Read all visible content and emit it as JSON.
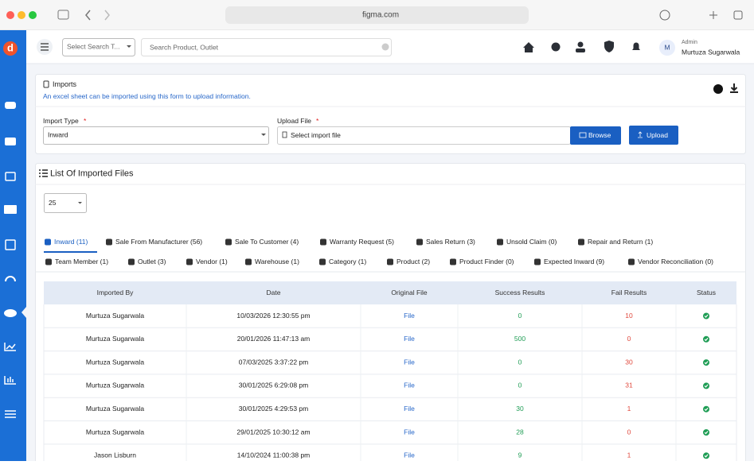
{
  "browser": {
    "url": "figma.com"
  },
  "sidebar": {
    "logo": "d"
  },
  "topbar": {
    "search_type_placeholder": "Select Search T...",
    "search_placeholder": "Search Product, Outlet",
    "avatar": "M",
    "user_role": "Admin",
    "user_name": "Murtuza Sugarwala"
  },
  "imports": {
    "title": "Imports",
    "description": "An excel sheet can be imported using this form to upload information.",
    "import_type_label": "Import Type",
    "import_type_value": "Inward",
    "upload_label": "Upload File",
    "required_mark": "*",
    "upload_placeholder": "Select import file",
    "browse_button": "Browse",
    "upload_button": "Upload"
  },
  "list": {
    "title": "List Of Imported Files",
    "page_size": 25,
    "tabs_row_1": [
      "Inward (11)",
      "Sale From Manufacturer (56)",
      "Sale To Customer (4)",
      "Warranty Request (5)",
      "Sales Return (3)",
      "Unsold Claim (0)",
      "Repair and Return (1)"
    ],
    "tabs_row_2": [
      "Team Member (1)",
      "Outlet (3)",
      "Vendor (1)",
      "Warehouse (1)",
      "Category (1)",
      "Product (2)",
      "Product Finder (0)",
      "Expected Inward (9)",
      "Vendor Reconciliation (0)"
    ],
    "table": {
      "headers": [
        "Imported By",
        "Date",
        "Original File",
        "Success Results",
        "Fail Results",
        "Status"
      ],
      "rows": [
        [
          "Murtuza Sugarwala",
          "10/03/2026 12:30:55 pm",
          "File",
          0,
          10
        ],
        [
          "Murtuza Sugarwala",
          "20/01/2026 11:47:13 am",
          "File",
          500,
          0
        ],
        [
          "Murtuza Sugarwala",
          "07/03/2025 3:37:22 pm",
          "File",
          0,
          30
        ],
        [
          "Murtuza Sugarwala",
          "30/01/2025 6:29:08 pm",
          "File",
          0,
          31
        ],
        [
          "Murtuza Sugarwala",
          "30/01/2025 4:29:53 pm",
          "File",
          30,
          1
        ],
        [
          "Murtuza Sugarwala",
          "29/01/2025 10:30:12 am",
          "File",
          28,
          0
        ],
        [
          "Jason Lisburn",
          "14/10/2024 11:00:38 pm",
          "File",
          9,
          1
        ]
      ]
    }
  }
}
